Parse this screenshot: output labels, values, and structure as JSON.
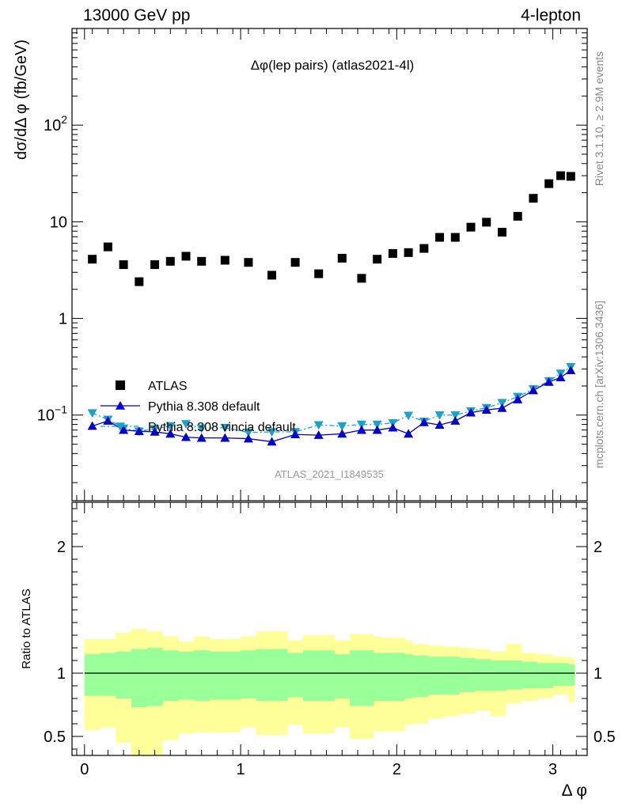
{
  "header": {
    "left": "13000 GeV pp",
    "right": "4-lepton"
  },
  "side_labels": {
    "rivet": "Rivet 3.1.10, ≥ 2.9M events",
    "mcplots": "mcplots.cern.ch [arXiv:1306.3436]"
  },
  "chart_data": [
    {
      "type": "scatter",
      "title": "Δφ(lep pairs) (atlas2021-4l)",
      "ylabel": "dσ/dΔ φ (fb/GeV)",
      "xlabel": "",
      "yscale": "log",
      "ylim": [
        0.013,
        1000
      ],
      "xlim": [
        -0.08,
        3.22
      ],
      "yticks": [
        0.1,
        1,
        10,
        100
      ],
      "ytick_labels": [
        "10^-1",
        "1",
        "10",
        "10^2"
      ],
      "watermark": "ATLAS_2021_I1849535",
      "legend_position": "lower-left",
      "x": [
        0.05,
        0.15,
        0.25,
        0.35,
        0.45,
        0.55,
        0.65,
        0.75,
        0.9,
        1.05,
        1.2,
        1.35,
        1.5,
        1.65,
        1.775,
        1.875,
        1.975,
        2.075,
        2.175,
        2.275,
        2.375,
        2.475,
        2.575,
        2.675,
        2.775,
        2.875,
        2.975,
        3.05,
        3.115
      ],
      "series": [
        {
          "name": "ATLAS",
          "marker": "square",
          "color": "#000000",
          "values": [
            4.1,
            5.5,
            3.6,
            2.4,
            3.6,
            3.9,
            4.4,
            3.9,
            4.0,
            3.8,
            2.8,
            3.8,
            2.9,
            4.2,
            2.6,
            4.1,
            4.7,
            4.8,
            5.3,
            6.9,
            6.9,
            8.8,
            9.9,
            7.8,
            11.4,
            17.5,
            24.8,
            30.0,
            29.5
          ]
        },
        {
          "name": "Pythia 8.308 default",
          "marker": "triangle-up",
          "color": "#0000cc",
          "values": [
            0.077,
            0.087,
            0.07,
            0.068,
            0.067,
            0.064,
            0.059,
            0.058,
            0.058,
            0.057,
            0.053,
            0.063,
            0.062,
            0.064,
            0.07,
            0.07,
            0.074,
            0.064,
            0.084,
            0.079,
            0.087,
            0.106,
            0.113,
            0.118,
            0.145,
            0.18,
            0.22,
            0.245,
            0.29
          ]
        },
        {
          "name": "Pythia 8.308 vincia default",
          "marker": "triangle-down",
          "color": "#1aa2c8",
          "values": [
            0.105,
            0.09,
            0.073,
            0.068,
            0.072,
            0.077,
            0.081,
            0.073,
            0.074,
            0.066,
            0.067,
            0.067,
            0.079,
            0.077,
            0.08,
            0.08,
            0.083,
            0.099,
            0.086,
            0.1,
            0.1,
            0.11,
            0.119,
            0.134,
            0.155,
            0.186,
            0.225,
            0.27,
            0.315
          ]
        }
      ]
    },
    {
      "type": "area",
      "ylabel": "Ratio to ATLAS",
      "xlabel": "Δ φ",
      "ylim": [
        0.35,
        2.35
      ],
      "xlim": [
        -0.08,
        3.22
      ],
      "yticks": [
        0.5,
        1,
        2
      ],
      "ytick_labels": [
        "0.5",
        "1",
        "2"
      ],
      "xticks": [
        0,
        1,
        2,
        3
      ],
      "xtick_labels": [
        "0",
        "1",
        "2",
        "3"
      ],
      "reference_line": 1,
      "bin_edges": [
        0.0,
        0.1,
        0.2,
        0.3,
        0.4,
        0.5,
        0.6,
        0.7,
        0.8,
        1.0,
        1.1,
        1.3,
        1.4,
        1.6,
        1.7,
        1.85,
        1.9,
        2.05,
        2.1,
        2.2,
        2.3,
        2.4,
        2.5,
        2.6,
        2.7,
        2.8,
        2.9,
        3.0,
        3.1,
        3.14
      ],
      "bands": [
        {
          "name": "stat",
          "color": "#99ff99",
          "upper": [
            1.15,
            1.16,
            1.17,
            1.19,
            1.2,
            1.18,
            1.17,
            1.18,
            1.17,
            1.18,
            1.19,
            1.16,
            1.18,
            1.15,
            1.18,
            1.16,
            1.16,
            1.15,
            1.14,
            1.13,
            1.13,
            1.12,
            1.11,
            1.1,
            1.1,
            1.09,
            1.08,
            1.08,
            1.07
          ],
          "lower": [
            0.82,
            0.82,
            0.8,
            0.73,
            0.74,
            0.78,
            0.79,
            0.78,
            0.79,
            0.8,
            0.78,
            0.81,
            0.78,
            0.8,
            0.74,
            0.78,
            0.78,
            0.8,
            0.81,
            0.83,
            0.83,
            0.85,
            0.86,
            0.86,
            0.87,
            0.88,
            0.88,
            0.9,
            0.9
          ]
        },
        {
          "name": "total",
          "color": "#ffff99",
          "upper": [
            1.27,
            1.27,
            1.32,
            1.35,
            1.33,
            1.29,
            1.25,
            1.29,
            1.27,
            1.29,
            1.33,
            1.26,
            1.3,
            1.26,
            1.31,
            1.29,
            1.28,
            1.26,
            1.23,
            1.22,
            1.21,
            1.2,
            1.19,
            1.17,
            1.23,
            1.16,
            1.15,
            1.13,
            1.12
          ],
          "lower": [
            0.55,
            0.57,
            0.45,
            0.25,
            0.33,
            0.47,
            0.52,
            0.53,
            0.53,
            0.57,
            0.51,
            0.59,
            0.52,
            0.57,
            0.48,
            0.54,
            0.54,
            0.59,
            0.6,
            0.64,
            0.66,
            0.68,
            0.7,
            0.66,
            0.76,
            0.78,
            0.8,
            0.83,
            0.77
          ]
        }
      ]
    }
  ]
}
